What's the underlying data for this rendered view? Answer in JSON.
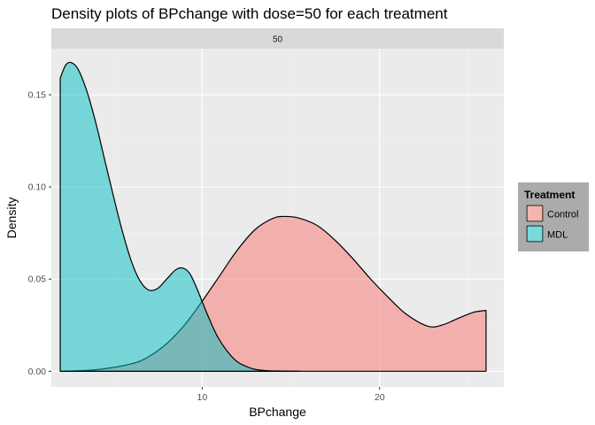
{
  "chart_data": {
    "type": "area",
    "title": "Density plots of BPchange with dose=50 for each treatment",
    "facet_label": "50",
    "xlabel": "BPchange",
    "ylabel": "Density",
    "xlim": [
      1.5,
      27.0
    ],
    "ylim": [
      -0.0085,
      0.175
    ],
    "xticks": [
      10,
      20
    ],
    "yticks": [
      0.0,
      0.05,
      0.1,
      0.15
    ],
    "ytick_labels": [
      "0.00",
      "0.05",
      "0.10",
      "0.15"
    ],
    "grid": true,
    "legend": {
      "title": "Treatment",
      "placement": "right",
      "entries": [
        "Control",
        "MDL"
      ]
    },
    "series": [
      {
        "name": "Control",
        "color": "#F8766D",
        "x": [
          2.0,
          4.0,
          6.0,
          7.0,
          8.0,
          9.0,
          10.0,
          11.0,
          12.0,
          13.0,
          14.0,
          14.7,
          15.5,
          16.5,
          17.5,
          18.5,
          19.5,
          20.5,
          21.5,
          22.7,
          23.5,
          24.5,
          25.3,
          26.0
        ],
        "values": [
          0.0,
          0.0008,
          0.004,
          0.008,
          0.015,
          0.025,
          0.038,
          0.052,
          0.066,
          0.077,
          0.083,
          0.084,
          0.083,
          0.079,
          0.071,
          0.061,
          0.05,
          0.04,
          0.031,
          0.0245,
          0.025,
          0.029,
          0.032,
          0.033
        ]
      },
      {
        "name": "MDL",
        "color": "#00BFC4",
        "x": [
          2.0,
          2.3,
          2.6,
          3.0,
          3.5,
          4.0,
          4.5,
          5.0,
          5.5,
          6.0,
          6.5,
          7.0,
          7.5,
          8.0,
          8.5,
          8.9,
          9.3,
          9.7,
          10.2,
          10.8,
          11.4,
          12.0,
          12.8,
          13.5,
          14.5,
          15.5
        ],
        "values": [
          0.159,
          0.166,
          0.1675,
          0.164,
          0.152,
          0.135,
          0.115,
          0.095,
          0.076,
          0.06,
          0.049,
          0.044,
          0.045,
          0.05,
          0.055,
          0.056,
          0.053,
          0.045,
          0.033,
          0.02,
          0.011,
          0.005,
          0.0015,
          0.0004,
          0.0001,
          0.0
        ]
      }
    ]
  }
}
